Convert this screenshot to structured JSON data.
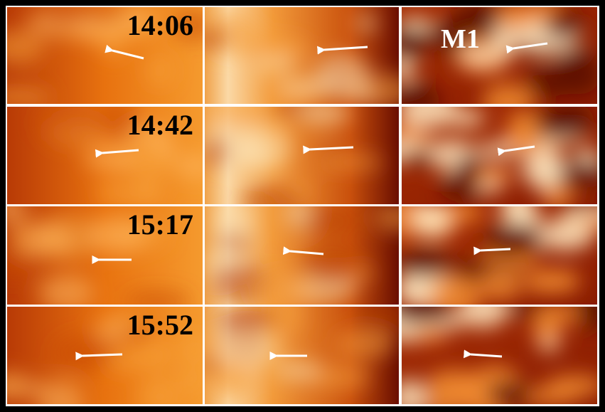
{
  "rows": [
    {
      "time": "14:06"
    },
    {
      "time": "14:42"
    },
    {
      "time": "15:17"
    },
    {
      "time": "15:52"
    }
  ],
  "label": "M1"
}
